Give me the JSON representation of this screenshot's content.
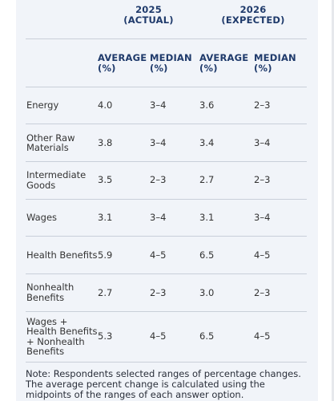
{
  "header": {
    "year_2025": "2025",
    "year_2025_sub": "(ACTUAL)",
    "year_2026": "2026",
    "year_2026_sub": "(EXPECTED)",
    "col_avg_1": "AVERAGE",
    "col_avg_1_unit": "(%)",
    "col_med_1": "MEDIAN",
    "col_med_1_unit": "(%)",
    "col_avg_2": "AVERAGE",
    "col_avg_2_unit": "(%)",
    "col_med_2": "MEDIAN",
    "col_med_2_unit": "(%)"
  },
  "rows": [
    {
      "label": "Energy",
      "avg_2025": "4.0",
      "med_2025": "3–4",
      "avg_2026": "3.6",
      "med_2026": "2–3"
    },
    {
      "label": "Other Raw Materials",
      "avg_2025": "3.8",
      "med_2025": "3–4",
      "avg_2026": "3.4",
      "med_2026": "3–4"
    },
    {
      "label": "Intermediate Goods",
      "avg_2025": "3.5",
      "med_2025": "2–3",
      "avg_2026": "2.7",
      "med_2026": "2–3"
    },
    {
      "label": "Wages",
      "avg_2025": "3.1",
      "med_2025": "3–4",
      "avg_2026": "3.1",
      "med_2026": "3–4"
    },
    {
      "label": "Health Benefits",
      "avg_2025": "5.9",
      "med_2025": "4–5",
      "avg_2026": "6.5",
      "med_2026": "4–5"
    },
    {
      "label": "Nonhealth Benefits",
      "avg_2025": "2.7",
      "med_2025": "2–3",
      "avg_2026": "3.0",
      "med_2026": "2–3"
    },
    {
      "label": "Wages + Health Benefits + Nonhealth Benefits",
      "avg_2025": "5.3",
      "med_2025": "4–5",
      "avg_2026": "6.5",
      "med_2026": "4–5"
    }
  ],
  "note": "Note: Respondents selected ranges of percentage changes. The average percent change is calculated using the midpoints of the ranges of each answer option."
}
